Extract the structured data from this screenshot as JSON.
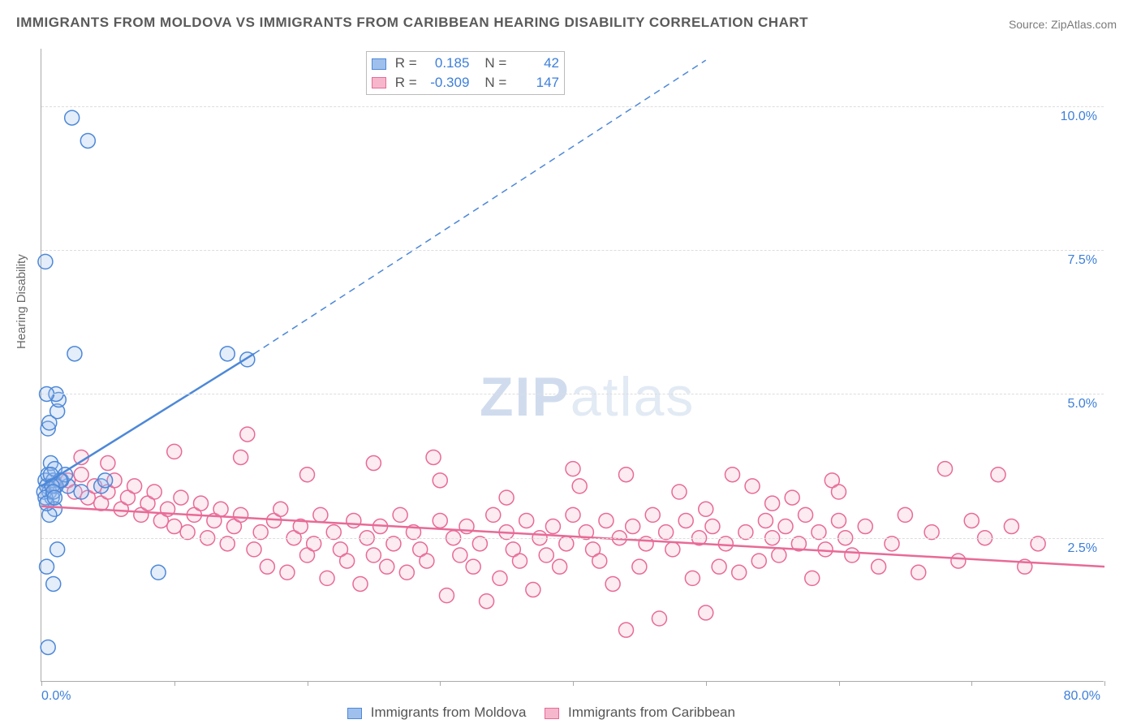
{
  "title": "IMMIGRANTS FROM MOLDOVA VS IMMIGRANTS FROM CARIBBEAN HEARING DISABILITY CORRELATION CHART",
  "source_prefix": "Source: ",
  "source_name": "ZipAtlas.com",
  "y_axis_label": "Hearing Disability",
  "watermark_a": "ZIP",
  "watermark_b": "atlas",
  "chart": {
    "type": "scatter",
    "background_color": "#ffffff",
    "grid_color": "#dddddd",
    "axis_color": "#aaaaaa",
    "tick_label_color": "#3d7fd9",
    "xlim": [
      0,
      80
    ],
    "ylim": [
      0,
      11
    ],
    "x_ticks": [
      0,
      10,
      20,
      30,
      40,
      50,
      60,
      70,
      80
    ],
    "x_tick_labels": {
      "0": "0.0%",
      "80": "80.0%"
    },
    "y_gridlines": [
      2.5,
      5.0,
      7.5,
      10.0
    ],
    "y_tick_labels": {
      "2.5": "2.5%",
      "5.0": "5.0%",
      "7.5": "7.5%",
      "10.0": "10.0%"
    },
    "marker_radius": 9,
    "marker_fill_opacity": 0.28,
    "marker_stroke_width": 1.5,
    "trend_line_width": 2.5
  },
  "series_a": {
    "name": "Immigrants from Moldova",
    "color_stroke": "#4d88d8",
    "color_fill": "#9fc0ec",
    "R": "0.185",
    "N": "42",
    "trend": {
      "x1": 0,
      "y1": 3.4,
      "x2": 16,
      "y2": 5.7,
      "dash_to_x": 50,
      "dash_to_y": 10.8
    },
    "points": [
      [
        0.3,
        3.5
      ],
      [
        0.4,
        3.4
      ],
      [
        0.5,
        3.6
      ],
      [
        0.6,
        3.3
      ],
      [
        0.7,
        3.8
      ],
      [
        0.8,
        3.2
      ],
      [
        0.9,
        3.5
      ],
      [
        1.0,
        3.7
      ],
      [
        0.5,
        4.4
      ],
      [
        0.6,
        4.5
      ],
      [
        1.2,
        4.7
      ],
      [
        1.3,
        4.9
      ],
      [
        1.1,
        5.0
      ],
      [
        0.4,
        5.0
      ],
      [
        2.5,
        5.7
      ],
      [
        1.0,
        3.0
      ],
      [
        0.6,
        2.9
      ],
      [
        1.2,
        2.3
      ],
      [
        0.4,
        2.0
      ],
      [
        0.9,
        1.7
      ],
      [
        8.8,
        1.9
      ],
      [
        0.5,
        0.6
      ],
      [
        4.5,
        3.4
      ],
      [
        4.8,
        3.5
      ],
      [
        3.0,
        3.3
      ],
      [
        2.0,
        3.4
      ],
      [
        1.5,
        3.5
      ],
      [
        1.8,
        3.6
      ],
      [
        0.3,
        7.3
      ],
      [
        2.3,
        9.8
      ],
      [
        3.5,
        9.4
      ],
      [
        14.0,
        5.7
      ],
      [
        15.5,
        5.6
      ],
      [
        0.2,
        3.3
      ],
      [
        0.3,
        3.2
      ],
      [
        0.4,
        3.1
      ],
      [
        1.1,
        3.4
      ],
      [
        1.4,
        3.5
      ],
      [
        0.7,
        3.6
      ],
      [
        0.8,
        3.4
      ],
      [
        0.9,
        3.3
      ],
      [
        1.0,
        3.2
      ]
    ]
  },
  "series_b": {
    "name": "Immigrants from Caribbean",
    "color_stroke": "#e86a97",
    "color_fill": "#f6b7cd",
    "R": "-0.309",
    "N": "147",
    "trend": {
      "x1": 0,
      "y1": 3.05,
      "x2": 80,
      "y2": 2.0
    },
    "points": [
      [
        1,
        3.4
      ],
      [
        2,
        3.5
      ],
      [
        2.5,
        3.3
      ],
      [
        3,
        3.6
      ],
      [
        3.5,
        3.2
      ],
      [
        4,
        3.4
      ],
      [
        4.5,
        3.1
      ],
      [
        5,
        3.3
      ],
      [
        5.5,
        3.5
      ],
      [
        6,
        3.0
      ],
      [
        6.5,
        3.2
      ],
      [
        7,
        3.4
      ],
      [
        7.5,
        2.9
      ],
      [
        8,
        3.1
      ],
      [
        8.5,
        3.3
      ],
      [
        9,
        2.8
      ],
      [
        9.5,
        3.0
      ],
      [
        10,
        2.7
      ],
      [
        10.5,
        3.2
      ],
      [
        11,
        2.6
      ],
      [
        11.5,
        2.9
      ],
      [
        12,
        3.1
      ],
      [
        12.5,
        2.5
      ],
      [
        13,
        2.8
      ],
      [
        13.5,
        3.0
      ],
      [
        14,
        2.4
      ],
      [
        14.5,
        2.7
      ],
      [
        15,
        2.9
      ],
      [
        15.5,
        4.3
      ],
      [
        16,
        2.3
      ],
      [
        16.5,
        2.6
      ],
      [
        17,
        2.0
      ],
      [
        17.5,
        2.8
      ],
      [
        18,
        3.0
      ],
      [
        18.5,
        1.9
      ],
      [
        19,
        2.5
      ],
      [
        19.5,
        2.7
      ],
      [
        20,
        2.2
      ],
      [
        20.5,
        2.4
      ],
      [
        21,
        2.9
      ],
      [
        21.5,
        1.8
      ],
      [
        22,
        2.6
      ],
      [
        22.5,
        2.3
      ],
      [
        23,
        2.1
      ],
      [
        23.5,
        2.8
      ],
      [
        24,
        1.7
      ],
      [
        24.5,
        2.5
      ],
      [
        25,
        2.2
      ],
      [
        25.5,
        2.7
      ],
      [
        26,
        2.0
      ],
      [
        26.5,
        2.4
      ],
      [
        27,
        2.9
      ],
      [
        27.5,
        1.9
      ],
      [
        28,
        2.6
      ],
      [
        28.5,
        2.3
      ],
      [
        29,
        2.1
      ],
      [
        29.5,
        3.9
      ],
      [
        30,
        2.8
      ],
      [
        30.5,
        1.5
      ],
      [
        31,
        2.5
      ],
      [
        31.5,
        2.2
      ],
      [
        32,
        2.7
      ],
      [
        32.5,
        2.0
      ],
      [
        33,
        2.4
      ],
      [
        33.5,
        1.4
      ],
      [
        34,
        2.9
      ],
      [
        34.5,
        1.8
      ],
      [
        35,
        2.6
      ],
      [
        35.5,
        2.3
      ],
      [
        36,
        2.1
      ],
      [
        36.5,
        2.8
      ],
      [
        37,
        1.6
      ],
      [
        37.5,
        2.5
      ],
      [
        38,
        2.2
      ],
      [
        38.5,
        2.7
      ],
      [
        39,
        2.0
      ],
      [
        39.5,
        2.4
      ],
      [
        40,
        2.9
      ],
      [
        40.5,
        3.4
      ],
      [
        41,
        2.6
      ],
      [
        41.5,
        2.3
      ],
      [
        42,
        2.1
      ],
      [
        42.5,
        2.8
      ],
      [
        43,
        1.7
      ],
      [
        43.5,
        2.5
      ],
      [
        44,
        3.6
      ],
      [
        44.5,
        2.7
      ],
      [
        45,
        2.0
      ],
      [
        45.5,
        2.4
      ],
      [
        46,
        2.9
      ],
      [
        46.5,
        1.1
      ],
      [
        47,
        2.6
      ],
      [
        47.5,
        2.3
      ],
      [
        48,
        3.3
      ],
      [
        48.5,
        2.8
      ],
      [
        49,
        1.8
      ],
      [
        49.5,
        2.5
      ],
      [
        50,
        3.0
      ],
      [
        50.5,
        2.7
      ],
      [
        51,
        2.0
      ],
      [
        51.5,
        2.4
      ],
      [
        52,
        3.6
      ],
      [
        52.5,
        1.9
      ],
      [
        53,
        2.6
      ],
      [
        53.5,
        3.4
      ],
      [
        54,
        2.1
      ],
      [
        54.5,
        2.8
      ],
      [
        55,
        2.5
      ],
      [
        55.5,
        2.2
      ],
      [
        56,
        2.7
      ],
      [
        56.5,
        3.2
      ],
      [
        57,
        2.4
      ],
      [
        57.5,
        2.9
      ],
      [
        58,
        1.8
      ],
      [
        58.5,
        2.6
      ],
      [
        59,
        2.3
      ],
      [
        59.5,
        3.5
      ],
      [
        60,
        2.8
      ],
      [
        60.5,
        2.5
      ],
      [
        61,
        2.2
      ],
      [
        62,
        2.7
      ],
      [
        63,
        2.0
      ],
      [
        64,
        2.4
      ],
      [
        65,
        2.9
      ],
      [
        66,
        1.9
      ],
      [
        67,
        2.6
      ],
      [
        68,
        3.7
      ],
      [
        69,
        2.1
      ],
      [
        70,
        2.8
      ],
      [
        71,
        2.5
      ],
      [
        72,
        3.6
      ],
      [
        73,
        2.7
      ],
      [
        74,
        2.0
      ],
      [
        75,
        2.4
      ],
      [
        50,
        1.2
      ],
      [
        44,
        0.9
      ],
      [
        40,
        3.7
      ],
      [
        35,
        3.2
      ],
      [
        30,
        3.5
      ],
      [
        25,
        3.8
      ],
      [
        20,
        3.6
      ],
      [
        15,
        3.9
      ],
      [
        10,
        4.0
      ],
      [
        5,
        3.8
      ],
      [
        3,
        3.9
      ],
      [
        60,
        3.3
      ],
      [
        55,
        3.1
      ]
    ]
  },
  "stats_labels": {
    "R": "R =",
    "N": "N ="
  }
}
